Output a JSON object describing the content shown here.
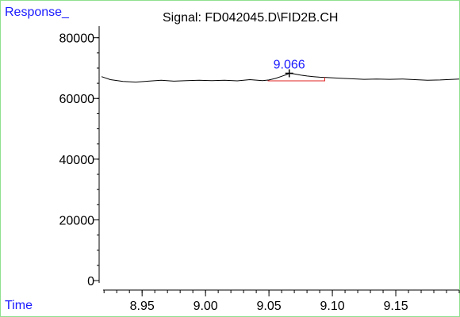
{
  "chart_data": {
    "type": "line",
    "title": "Signal: FD042045.D\\FID2B.CH",
    "ylabel": "Response_",
    "xlabel": "Time",
    "xlim": [
      8.918,
      9.2
    ],
    "ylim": [
      0,
      82000
    ],
    "x_ticks": [
      8.95,
      9.0,
      9.05,
      9.1,
      9.15
    ],
    "x_tick_labels": [
      "8.95",
      "9.00",
      "9.05",
      "9.10",
      "9.15"
    ],
    "x_minor_step": 0.01,
    "y_ticks": [
      0,
      20000,
      40000,
      60000,
      80000
    ],
    "y_tick_labels": [
      "0",
      "20000",
      "40000",
      "60000",
      "80000"
    ],
    "y_minor_step": 5000,
    "grid": false,
    "series": [
      {
        "color": "#000000",
        "x": [
          8.918,
          8.925,
          8.935,
          8.945,
          8.955,
          8.965,
          8.975,
          8.985,
          8.995,
          9.005,
          9.015,
          9.025,
          9.035,
          9.045,
          9.05,
          9.055,
          9.06,
          9.064,
          9.066,
          9.07,
          9.075,
          9.08,
          9.085,
          9.09,
          9.095,
          9.105,
          9.115,
          9.125,
          9.135,
          9.145,
          9.155,
          9.165,
          9.175,
          9.185,
          9.195,
          9.2
        ],
        "y": [
          67200,
          66200,
          65600,
          65400,
          65700,
          66000,
          65700,
          65900,
          66000,
          65900,
          66000,
          65800,
          66200,
          65900,
          66100,
          66600,
          67300,
          67900,
          68300,
          68100,
          67700,
          67400,
          67200,
          67000,
          66900,
          66700,
          66500,
          66300,
          66400,
          66300,
          66400,
          66200,
          66000,
          66100,
          66300,
          66400
        ]
      }
    ],
    "peak": {
      "label": "9.066",
      "x": 9.066,
      "y": 68300,
      "color": "#1a1aff",
      "integration_color": "#e02020",
      "integration_start": [
        9.049,
        65800
      ],
      "integration_end": [
        9.094,
        65800
      ],
      "integration_end_top": [
        9.094,
        67000
      ]
    }
  }
}
